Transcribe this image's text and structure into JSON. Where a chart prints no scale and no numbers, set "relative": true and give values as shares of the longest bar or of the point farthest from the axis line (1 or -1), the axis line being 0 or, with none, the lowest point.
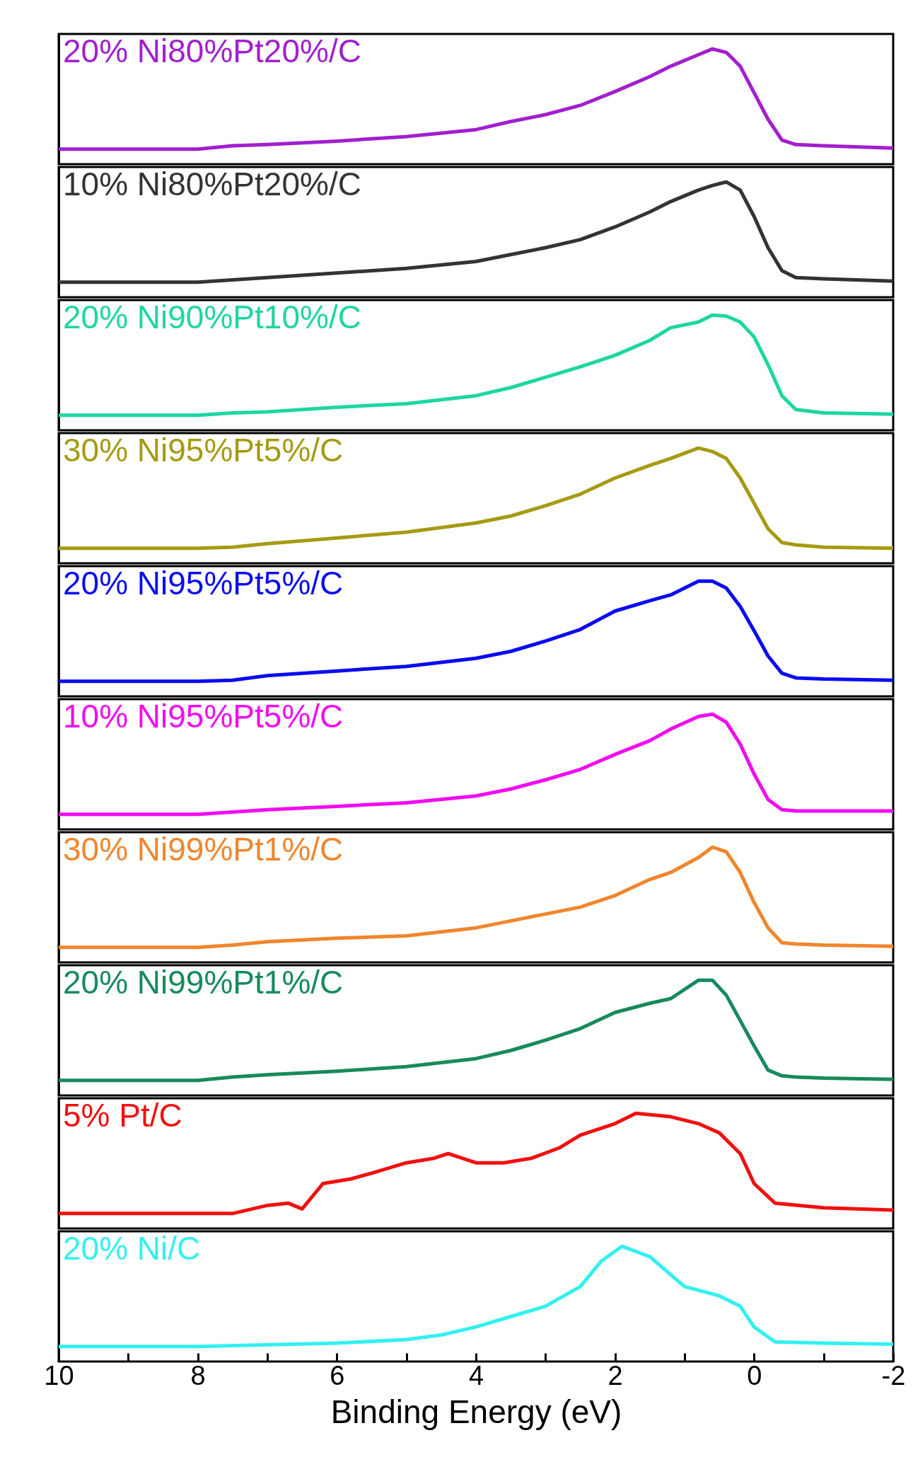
{
  "chart_data": [
    {
      "type": "line",
      "relative": true,
      "xlim": [
        10,
        -2
      ],
      "tick_labels": false,
      "legend": "top left",
      "series": [
        {
          "name": "20% Ni80%Pt20%/C",
          "color": "#a11fcf",
          "x": [
            10,
            8,
            7.5,
            7,
            6,
            5,
            4,
            3.5,
            3,
            2.5,
            2,
            1.5,
            1.2,
            0.8,
            0.6,
            0.4,
            0.2,
            0,
            -0.2,
            -0.4,
            -0.6,
            -1,
            -2
          ],
          "values": [
            0.13,
            0.13,
            0.16,
            0.17,
            0.2,
            0.24,
            0.3,
            0.37,
            0.43,
            0.51,
            0.63,
            0.76,
            0.85,
            0.95,
            1,
            0.97,
            0.85,
            0.62,
            0.39,
            0.21,
            0.17,
            0.16,
            0.14
          ]
        }
      ]
    },
    {
      "type": "line",
      "relative": true,
      "xlim": [
        10,
        -2
      ],
      "tick_labels": false,
      "legend": "top left",
      "series": [
        {
          "name": "10% Ni80%Pt20%/C",
          "color": "#333333",
          "x": [
            10,
            8,
            7.5,
            7,
            6,
            5,
            4,
            3.5,
            3,
            2.5,
            2,
            1.5,
            1.2,
            0.8,
            0.6,
            0.4,
            0.2,
            0,
            -0.2,
            -0.4,
            -0.6,
            -1,
            -2
          ],
          "values": [
            0.13,
            0.13,
            0.15,
            0.17,
            0.21,
            0.25,
            0.31,
            0.37,
            0.43,
            0.5,
            0.61,
            0.74,
            0.83,
            0.93,
            0.97,
            1,
            0.93,
            0.7,
            0.43,
            0.23,
            0.17,
            0.16,
            0.14
          ]
        }
      ]
    },
    {
      "type": "line",
      "relative": true,
      "xlim": [
        10,
        -2
      ],
      "tick_labels": false,
      "legend": "top left",
      "series": [
        {
          "name": "20% Ni90%Pt10%/C",
          "color": "#1dd6a0",
          "x": [
            10,
            8,
            7.5,
            7,
            6,
            5,
            4,
            3.5,
            3,
            2.5,
            2,
            1.5,
            1.2,
            0.8,
            0.6,
            0.4,
            0.2,
            0,
            -0.2,
            -0.4,
            -0.6,
            -1,
            -2
          ],
          "values": [
            0.13,
            0.13,
            0.15,
            0.16,
            0.2,
            0.23,
            0.3,
            0.37,
            0.46,
            0.55,
            0.65,
            0.78,
            0.89,
            0.94,
            1,
            0.99,
            0.94,
            0.81,
            0.57,
            0.3,
            0.18,
            0.15,
            0.14
          ]
        }
      ]
    },
    {
      "type": "line",
      "relative": true,
      "xlim": [
        10,
        -2
      ],
      "tick_labels": false,
      "legend": "top left",
      "series": [
        {
          "name": "30% Ni95%Pt5%/C",
          "color": "#a59b13",
          "x": [
            10,
            8,
            7.5,
            7,
            6,
            5,
            4,
            3.5,
            3,
            2.5,
            2,
            1.5,
            1.2,
            0.8,
            0.6,
            0.4,
            0.2,
            0,
            -0.2,
            -0.4,
            -0.6,
            -1,
            -2
          ],
          "values": [
            0.13,
            0.13,
            0.14,
            0.17,
            0.22,
            0.27,
            0.35,
            0.41,
            0.5,
            0.6,
            0.74,
            0.85,
            0.91,
            1,
            0.97,
            0.91,
            0.74,
            0.52,
            0.3,
            0.18,
            0.16,
            0.14,
            0.13
          ]
        }
      ]
    },
    {
      "type": "line",
      "relative": true,
      "xlim": [
        10,
        -2
      ],
      "tick_labels": false,
      "legend": "top left",
      "series": [
        {
          "name": "20% Ni95%Pt5%/C",
          "color": "#0b0bf0",
          "x": [
            10,
            8,
            7.5,
            7,
            6,
            5,
            4,
            3.5,
            3,
            2.5,
            2,
            1.5,
            1.2,
            0.8,
            0.6,
            0.4,
            0.2,
            0,
            -0.2,
            -0.4,
            -0.6,
            -1,
            -2
          ],
          "values": [
            0.13,
            0.13,
            0.14,
            0.18,
            0.22,
            0.26,
            0.33,
            0.39,
            0.48,
            0.58,
            0.74,
            0.83,
            0.88,
            1,
            1,
            0.94,
            0.78,
            0.57,
            0.35,
            0.2,
            0.16,
            0.15,
            0.14
          ]
        }
      ]
    },
    {
      "type": "line",
      "relative": true,
      "xlim": [
        10,
        -2
      ],
      "tick_labels": false,
      "legend": "top left",
      "series": [
        {
          "name": "10% Ni95%Pt5%/C",
          "color": "#f00cf0",
          "x": [
            10,
            8,
            7.5,
            7,
            6,
            5,
            4,
            3.5,
            3,
            2.5,
            2,
            1.5,
            1.2,
            0.8,
            0.6,
            0.4,
            0.2,
            0,
            -0.2,
            -0.4,
            -0.6,
            -1,
            -2
          ],
          "values": [
            0.13,
            0.13,
            0.15,
            0.17,
            0.2,
            0.23,
            0.29,
            0.35,
            0.43,
            0.52,
            0.65,
            0.77,
            0.87,
            0.98,
            1,
            0.93,
            0.74,
            0.48,
            0.26,
            0.17,
            0.16,
            0.16,
            0.16
          ]
        }
      ]
    },
    {
      "type": "line",
      "relative": true,
      "xlim": [
        10,
        -2
      ],
      "tick_labels": false,
      "legend": "top left",
      "series": [
        {
          "name": "30% Ni99%Pt1%/C",
          "color": "#f0862d",
          "x": [
            10,
            8,
            7.5,
            7,
            6,
            5,
            4,
            3.5,
            3,
            2.5,
            2,
            1.5,
            1.2,
            0.8,
            0.6,
            0.4,
            0.2,
            0,
            -0.2,
            -0.4,
            -0.6,
            -1,
            -2
          ],
          "values": [
            0.13,
            0.13,
            0.15,
            0.18,
            0.21,
            0.23,
            0.3,
            0.36,
            0.42,
            0.48,
            0.58,
            0.72,
            0.78,
            0.91,
            1,
            0.96,
            0.78,
            0.52,
            0.3,
            0.17,
            0.16,
            0.15,
            0.14
          ]
        }
      ]
    },
    {
      "type": "line",
      "relative": true,
      "xlim": [
        10,
        -2
      ],
      "tick_labels": false,
      "legend": "top left",
      "series": [
        {
          "name": "20% Ni99%Pt1%/C",
          "color": "#178a5c",
          "x": [
            10,
            8,
            7.5,
            7,
            6,
            5,
            4,
            3.5,
            3,
            2.5,
            2,
            1.5,
            1.2,
            0.8,
            0.6,
            0.4,
            0.2,
            0,
            -0.2,
            -0.4,
            -0.6,
            -1,
            -2
          ],
          "values": [
            0.13,
            0.13,
            0.16,
            0.18,
            0.21,
            0.25,
            0.32,
            0.39,
            0.48,
            0.58,
            0.72,
            0.8,
            0.84,
            1,
            1,
            0.87,
            0.65,
            0.43,
            0.22,
            0.17,
            0.16,
            0.15,
            0.14
          ]
        }
      ]
    },
    {
      "type": "line",
      "relative": true,
      "xlim": [
        10,
        -2
      ],
      "tick_labels": false,
      "legend": "top left",
      "series": [
        {
          "name": "5% Pt/C",
          "color": "#f01010",
          "x": [
            10,
            8,
            7.5,
            7,
            6.7,
            6.5,
            6.2,
            5.8,
            5.5,
            5,
            4.6,
            4.4,
            4.2,
            4,
            3.6,
            3.2,
            2.8,
            2.5,
            2,
            1.7,
            1.2,
            0.8,
            0.5,
            0.2,
            0,
            -0.3,
            -1,
            -2
          ],
          "values": [
            0.13,
            0.13,
            0.13,
            0.2,
            0.22,
            0.17,
            0.39,
            0.43,
            0.48,
            0.57,
            0.61,
            0.65,
            0.61,
            0.57,
            0.57,
            0.61,
            0.7,
            0.81,
            0.91,
            1,
            0.97,
            0.91,
            0.83,
            0.65,
            0.39,
            0.22,
            0.18,
            0.16
          ]
        }
      ]
    },
    {
      "type": "line",
      "relative": true,
      "xlim": [
        10,
        -2
      ],
      "xticks": [
        10,
        {
          "value": 9,
          "label": null
        },
        8,
        {
          "value": 7,
          "label": null
        },
        6,
        {
          "value": 5,
          "label": null
        },
        4,
        {
          "value": 3,
          "label": null
        },
        2,
        {
          "value": 1,
          "label": null
        },
        0,
        {
          "value": -1,
          "label": null
        },
        -2
      ],
      "xlabel": "Binding Energy (eV)",
      "tick_labels": "x",
      "legend": "top left",
      "series": [
        {
          "name": "20% Ni/C",
          "color": "#33f0f0",
          "x": [
            10,
            8,
            6,
            5,
            4.5,
            4,
            3.5,
            3,
            2.5,
            2.2,
            1.9,
            1.5,
            1,
            0.5,
            0.2,
            0,
            -0.3,
            -1,
            -2
          ],
          "values": [
            0.13,
            0.13,
            0.16,
            0.19,
            0.23,
            0.3,
            0.39,
            0.48,
            0.65,
            0.87,
            1,
            0.91,
            0.65,
            0.57,
            0.48,
            0.3,
            0.17,
            0.16,
            0.15
          ]
        }
      ]
    }
  ]
}
